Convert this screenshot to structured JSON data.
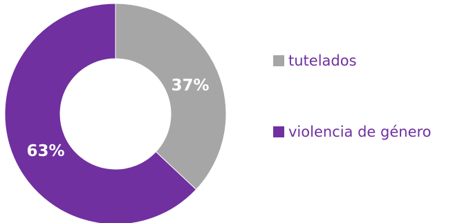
{
  "chart_data": {
    "type": "pie",
    "donut": true,
    "categories": [
      "tutelados",
      "violencia de género"
    ],
    "values": [
      37,
      63
    ],
    "data_labels": [
      "37%",
      "63%"
    ],
    "colors": [
      "#A6A6A6",
      "#7030A0"
    ],
    "legend_position": "right",
    "title": ""
  }
}
